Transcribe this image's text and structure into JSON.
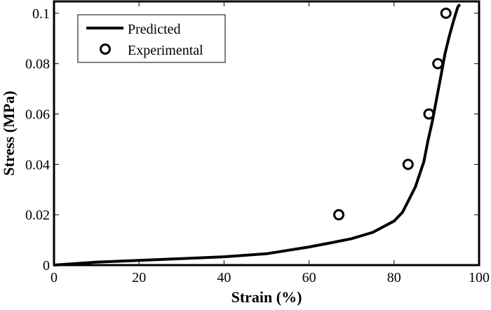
{
  "chart_data": {
    "type": "line",
    "xlabel": "Strain (%)",
    "ylabel": "Stress (MPa)",
    "xlim": [
      0,
      100
    ],
    "ylim": [
      0,
      0.1047
    ],
    "xticks": [
      "0",
      "20",
      "40",
      "60",
      "80",
      "100"
    ],
    "yticks": [
      "0",
      "0.02",
      "0.04",
      "0.06",
      "0.08",
      "0.1"
    ],
    "grid": false,
    "legend_position": "top-left",
    "series": [
      {
        "name": "Predicted",
        "style": "line",
        "color": "#000000",
        "x": [
          0,
          10,
          20,
          30,
          40,
          50,
          60,
          65,
          70,
          75,
          80,
          82,
          85,
          87,
          88,
          89,
          90,
          91,
          92,
          93,
          94,
          95,
          95.5
        ],
        "y": [
          0,
          0.0012,
          0.0019,
          0.0026,
          0.0033,
          0.0045,
          0.0072,
          0.0088,
          0.0105,
          0.013,
          0.0175,
          0.021,
          0.031,
          0.041,
          0.0496,
          0.057,
          0.066,
          0.075,
          0.084,
          0.091,
          0.097,
          0.1025,
          0.1035
        ]
      },
      {
        "name": "Experimental",
        "style": "marker-open-circle",
        "color": "#000000",
        "x": [
          67,
          83.3,
          88.2,
          90.3,
          92.2
        ],
        "y": [
          0.02,
          0.04,
          0.06,
          0.08,
          0.1
        ]
      }
    ]
  }
}
